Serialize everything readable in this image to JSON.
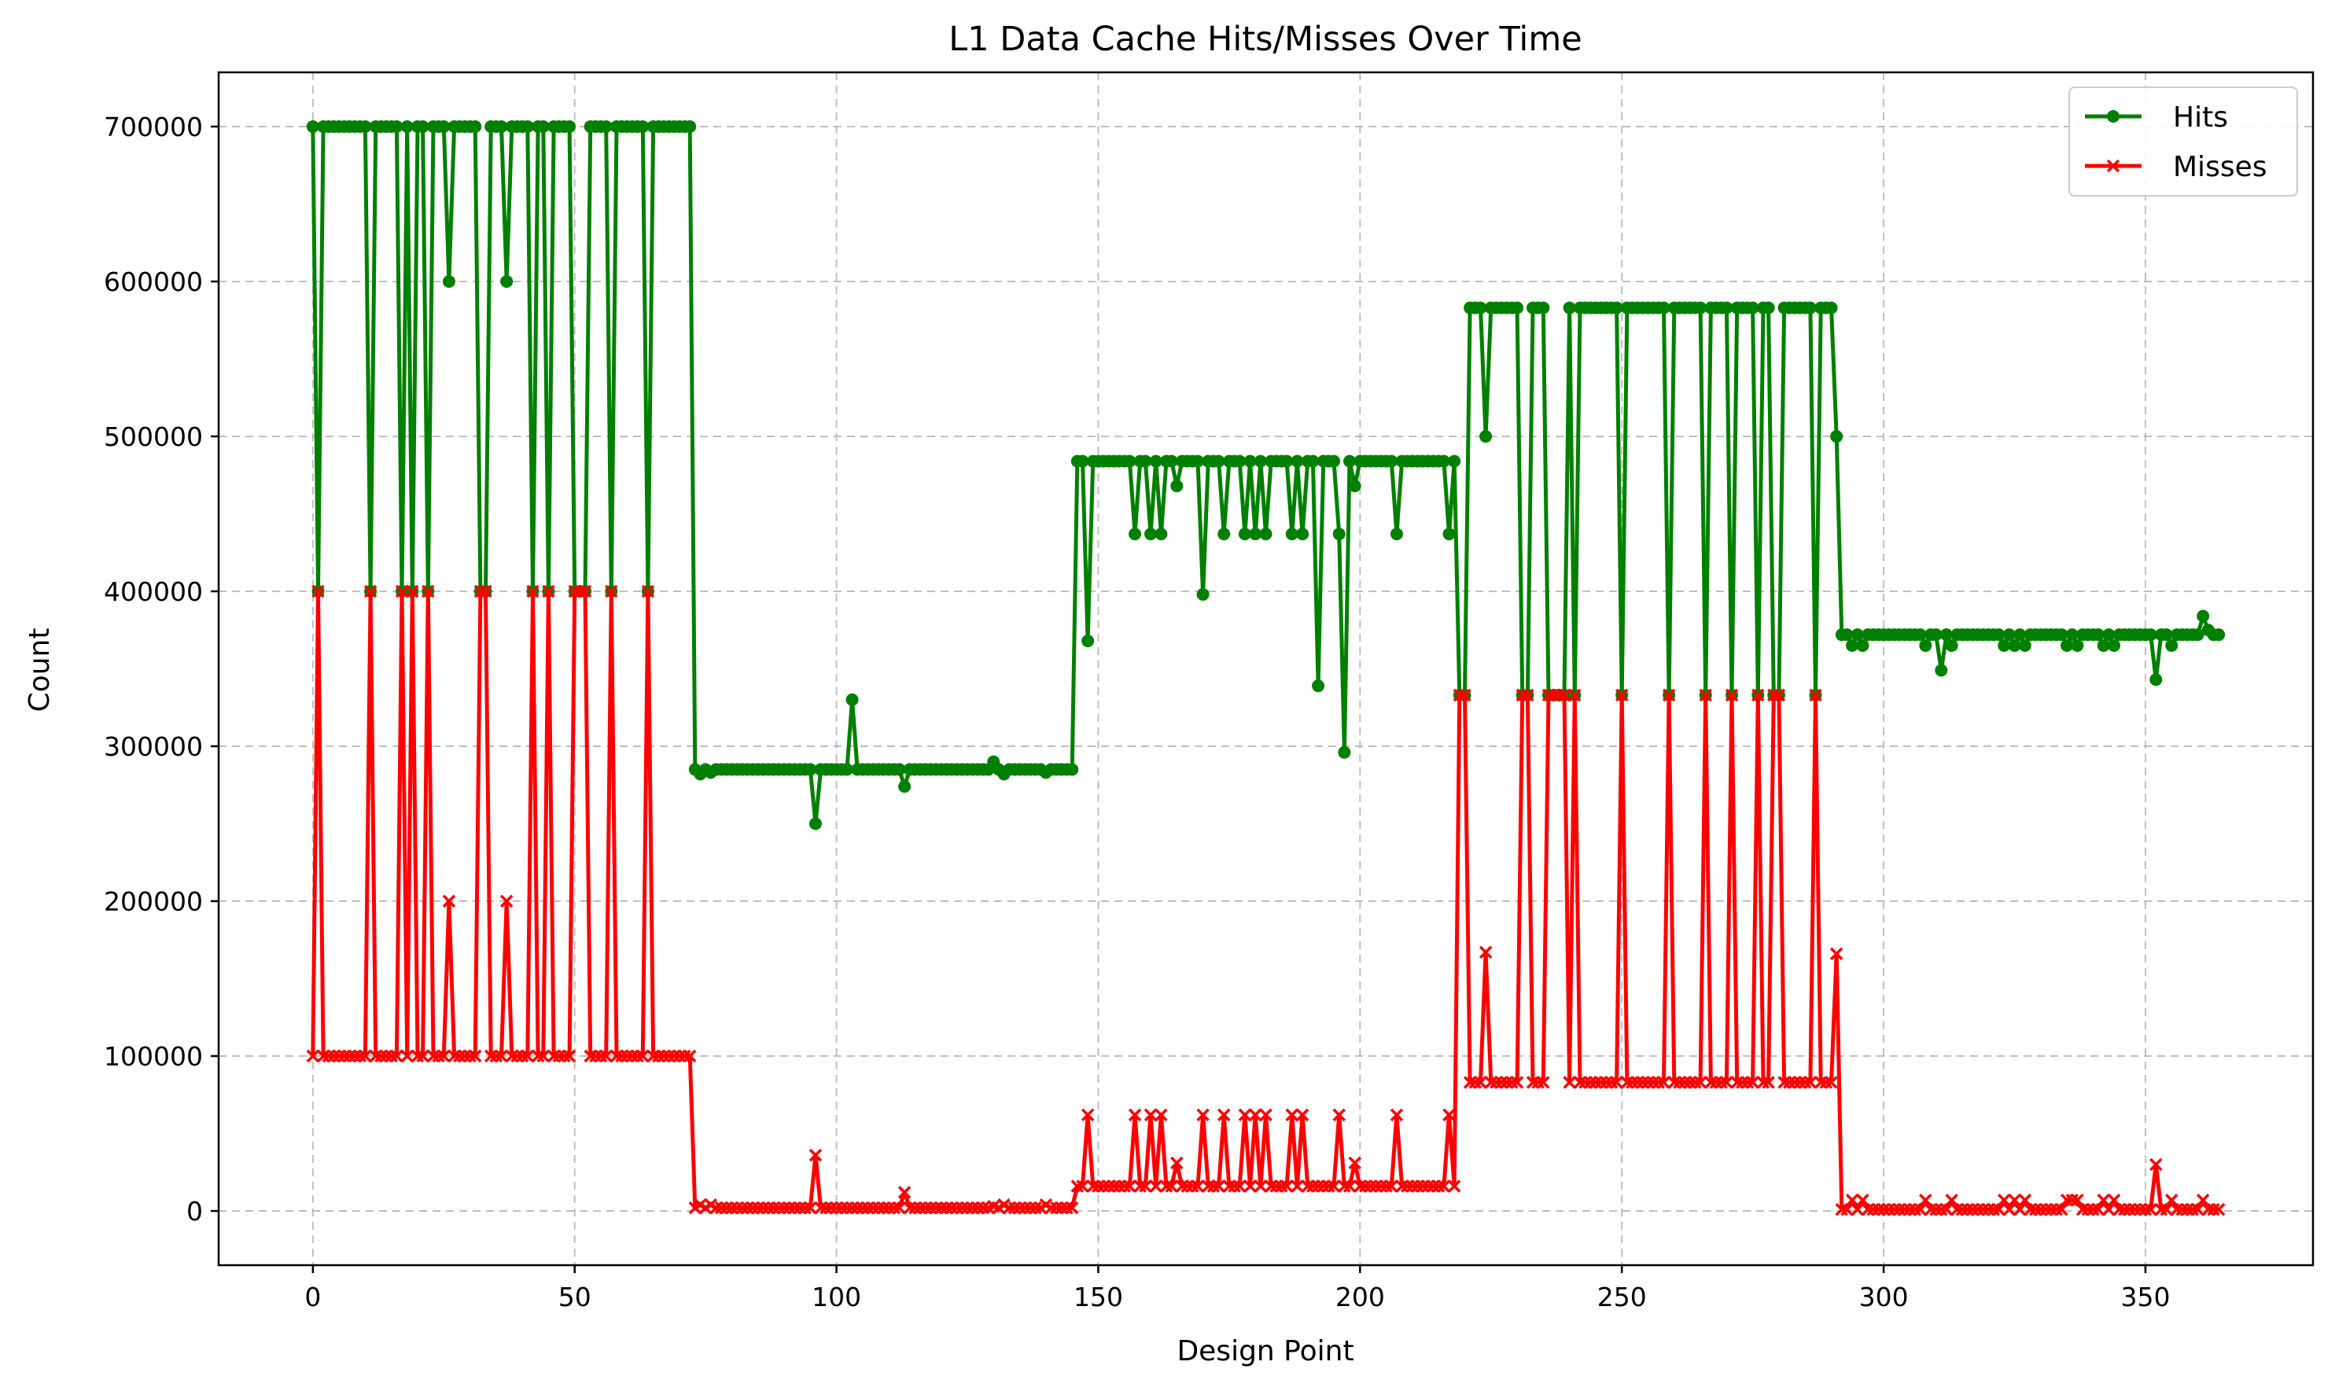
{
  "chart_data": {
    "type": "line",
    "title": "L1 Data Cache Hits/Misses Over Time",
    "xlabel": "Design Point",
    "ylabel": "Count",
    "xlim": [
      -18,
      382
    ],
    "ylim": [
      -35000,
      735000
    ],
    "xticks": [
      0,
      50,
      100,
      150,
      200,
      250,
      300,
      350
    ],
    "yticks": [
      0,
      100000,
      200000,
      300000,
      400000,
      500000,
      600000,
      700000
    ],
    "grid": true,
    "legend_position": "upper right",
    "series": [
      {
        "name": "Hits",
        "color": "#008000",
        "marker": "circle",
        "segments": [
          {
            "x_start": 0,
            "x_end": 72,
            "base": 700000,
            "dips": [
              [
                1,
                400000
              ],
              [
                11,
                400000
              ],
              [
                17,
                400000
              ],
              [
                19,
                400000
              ],
              [
                22,
                400000
              ],
              [
                26,
                600000
              ],
              [
                32,
                400000
              ],
              [
                33,
                400000
              ],
              [
                37,
                600000
              ],
              [
                42,
                400000
              ],
              [
                45,
                400000
              ],
              [
                50,
                400000
              ],
              [
                51,
                400000
              ],
              [
                52,
                400000
              ],
              [
                57,
                400000
              ],
              [
                64,
                400000
              ]
            ]
          },
          {
            "x_start": 73,
            "x_end": 145,
            "base": 285000,
            "dips": [
              [
                74,
                282000
              ],
              [
                76,
                283000
              ],
              [
                96,
                250000
              ],
              [
                103,
                330000
              ],
              [
                113,
                274000
              ],
              [
                130,
                290000
              ],
              [
                132,
                282000
              ],
              [
                140,
                283000
              ]
            ]
          },
          {
            "x_start": 146,
            "x_end": 218,
            "base": 484000,
            "dips": [
              [
                148,
                368000
              ],
              [
                157,
                437000
              ],
              [
                160,
                437000
              ],
              [
                162,
                437000
              ],
              [
                165,
                468000
              ],
              [
                170,
                398000
              ],
              [
                174,
                437000
              ],
              [
                178,
                437000
              ],
              [
                180,
                437000
              ],
              [
                182,
                437000
              ],
              [
                187,
                437000
              ],
              [
                189,
                437000
              ],
              [
                192,
                339000
              ],
              [
                196,
                437000
              ],
              [
                197,
                296000
              ],
              [
                199,
                468000
              ],
              [
                207,
                437000
              ],
              [
                217,
                437000
              ]
            ]
          },
          {
            "x_start": 219,
            "x_end": 290,
            "base": 583000,
            "dips": [
              [
                219,
                333000
              ],
              [
                220,
                333000
              ],
              [
                224,
                500000
              ],
              [
                231,
                333000
              ],
              [
                232,
                333000
              ],
              [
                236,
                333000
              ],
              [
                237,
                333000
              ],
              [
                238,
                333000
              ],
              [
                239,
                333000
              ],
              [
                241,
                333000
              ],
              [
                250,
                333000
              ],
              [
                259,
                333000
              ],
              [
                266,
                333000
              ],
              [
                271,
                333000
              ],
              [
                276,
                333000
              ],
              [
                279,
                333000
              ],
              [
                280,
                333000
              ],
              [
                287,
                333000
              ]
            ]
          },
          {
            "x_start": 291,
            "x_end": 364,
            "base": 372000,
            "dips": [
              [
                291,
                500000
              ],
              [
                294,
                365000
              ],
              [
                296,
                365000
              ],
              [
                308,
                365000
              ],
              [
                311,
                349000
              ],
              [
                313,
                365000
              ],
              [
                323,
                365000
              ],
              [
                325,
                365000
              ],
              [
                327,
                365000
              ],
              [
                335,
                365000
              ],
              [
                337,
                365000
              ],
              [
                342,
                365000
              ],
              [
                344,
                365000
              ],
              [
                352,
                343000
              ],
              [
                355,
                365000
              ],
              [
                361,
                384000
              ],
              [
                362,
                375000
              ]
            ]
          }
        ]
      },
      {
        "name": "Misses",
        "color": "#ff0000",
        "marker": "x",
        "segments": [
          {
            "x_start": 0,
            "x_end": 72,
            "base": 100000,
            "dips": [
              [
                1,
                400000
              ],
              [
                11,
                400000
              ],
              [
                17,
                400000
              ],
              [
                19,
                400000
              ],
              [
                22,
                400000
              ],
              [
                26,
                200000
              ],
              [
                32,
                400000
              ],
              [
                33,
                400000
              ],
              [
                37,
                200000
              ],
              [
                42,
                400000
              ],
              [
                45,
                400000
              ],
              [
                50,
                400000
              ],
              [
                51,
                400000
              ],
              [
                52,
                400000
              ],
              [
                57,
                400000
              ],
              [
                64,
                400000
              ]
            ]
          },
          {
            "x_start": 73,
            "x_end": 145,
            "base": 2000,
            "dips": [
              [
                74,
                4000
              ],
              [
                76,
                4000
              ],
              [
                96,
                36000
              ],
              [
                103,
                2000
              ],
              [
                113,
                12000
              ],
              [
                130,
                3000
              ],
              [
                132,
                4000
              ],
              [
                140,
                4000
              ]
            ]
          },
          {
            "x_start": 146,
            "x_end": 218,
            "base": 16000,
            "dips": [
              [
                148,
                62000
              ],
              [
                157,
                62000
              ],
              [
                160,
                62000
              ],
              [
                162,
                62000
              ],
              [
                165,
                31000
              ],
              [
                170,
                62000
              ],
              [
                174,
                62000
              ],
              [
                178,
                62000
              ],
              [
                180,
                62000
              ],
              [
                182,
                62000
              ],
              [
                187,
                62000
              ],
              [
                189,
                62000
              ],
              [
                196,
                62000
              ],
              [
                199,
                31000
              ],
              [
                207,
                62000
              ],
              [
                217,
                62000
              ]
            ]
          },
          {
            "x_start": 219,
            "x_end": 290,
            "base": 83000,
            "dips": [
              [
                219,
                333000
              ],
              [
                220,
                333000
              ],
              [
                224,
                167000
              ],
              [
                231,
                333000
              ],
              [
                232,
                333000
              ],
              [
                236,
                333000
              ],
              [
                237,
                333000
              ],
              [
                238,
                333000
              ],
              [
                239,
                333000
              ],
              [
                241,
                333000
              ],
              [
                250,
                333000
              ],
              [
                259,
                333000
              ],
              [
                266,
                333000
              ],
              [
                271,
                333000
              ],
              [
                276,
                333000
              ],
              [
                279,
                333000
              ],
              [
                280,
                333000
              ],
              [
                287,
                333000
              ]
            ]
          },
          {
            "x_start": 291,
            "x_end": 364,
            "base": 1000,
            "dips": [
              [
                291,
                166000
              ],
              [
                294,
                7000
              ],
              [
                296,
                7000
              ],
              [
                308,
                7000
              ],
              [
                313,
                7000
              ],
              [
                323,
                7000
              ],
              [
                325,
                7000
              ],
              [
                327,
                7000
              ],
              [
                335,
                7000
              ],
              [
                336,
                7000
              ],
              [
                337,
                7000
              ],
              [
                342,
                7000
              ],
              [
                344,
                7000
              ],
              [
                352,
                30000
              ],
              [
                355,
                7000
              ],
              [
                361,
                7000
              ]
            ]
          }
        ]
      }
    ]
  }
}
